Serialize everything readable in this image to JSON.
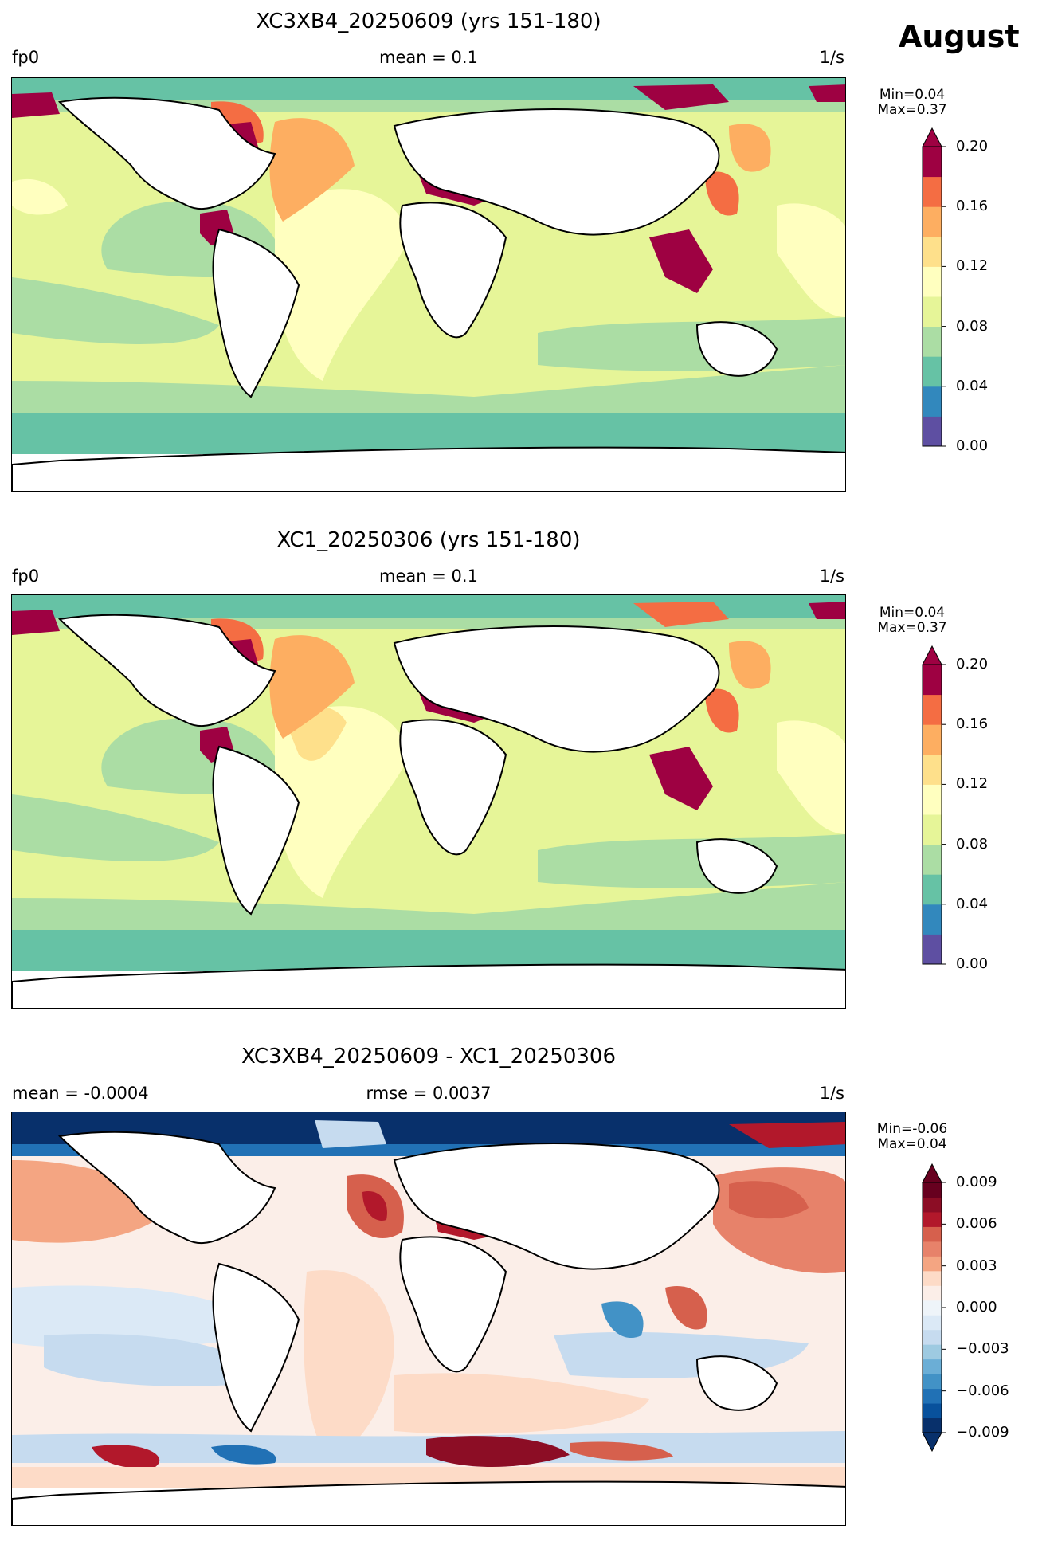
{
  "month_label": "August",
  "panels": [
    {
      "title": "XC3XB4_20250609 (yrs 151-180)",
      "left": "fp0",
      "center": "mean = 0.1",
      "right": "1/s",
      "stats": "Min=0.04\nMax=0.37",
      "colorbar": {
        "ticks": [
          "0.00",
          "0.04",
          "0.08",
          "0.12",
          "0.16",
          "0.20"
        ],
        "colors": [
          "#5e4fa2",
          "#3288bd",
          "#66c2a5",
          "#abdda4",
          "#e6f598",
          "#ffffbf",
          "#fee08b",
          "#fdae61",
          "#f46d43",
          "#9e0142"
        ],
        "extend": "max"
      }
    },
    {
      "title": "XC1_20250306 (yrs 151-180)",
      "left": "fp0",
      "center": "mean = 0.1",
      "right": "1/s",
      "stats": "Min=0.04\nMax=0.37",
      "colorbar": {
        "ticks": [
          "0.00",
          "0.04",
          "0.08",
          "0.12",
          "0.16",
          "0.20"
        ],
        "colors": [
          "#5e4fa2",
          "#3288bd",
          "#66c2a5",
          "#abdda4",
          "#e6f598",
          "#ffffbf",
          "#fee08b",
          "#fdae61",
          "#f46d43",
          "#9e0142"
        ],
        "extend": "max"
      }
    },
    {
      "title": "XC3XB4_20250609 - XC1_20250306",
      "left": "mean = -0.0004",
      "center": "rmse = 0.0037",
      "right": "1/s",
      "stats": "Min=-0.06\nMax=0.04",
      "colorbar": {
        "ticks": [
          "−0.009",
          "−0.006",
          "−0.003",
          "0.000",
          "0.003",
          "0.006",
          "0.009"
        ],
        "colors": [
          "#08306b",
          "#08519c",
          "#2171b5",
          "#4292c6",
          "#6baed6",
          "#9ecae1",
          "#c6dbef",
          "#dbe9f6",
          "#eef4f9",
          "#fbeee8",
          "#fddbc7",
          "#f4a582",
          "#e7826a",
          "#d6604d",
          "#b2182b",
          "#8c0d25",
          "#67001f"
        ],
        "extend": "both"
      }
    }
  ]
}
